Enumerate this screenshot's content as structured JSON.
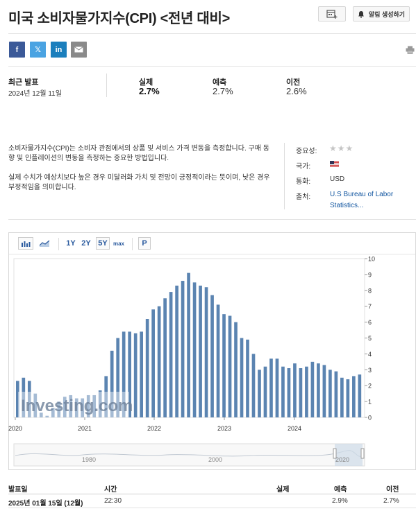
{
  "page": {
    "title": "미국 소비자물가지수(CPI) <전년 대비>",
    "alert_button": "알림 생성하기"
  },
  "share": {
    "facebook": "f",
    "twitter": "𝕏",
    "linkedin": "in"
  },
  "stats": {
    "latest_label": "최근 발표",
    "latest_date": "2024년 12월 11일",
    "actual_label": "실제",
    "actual_value": "2.7%",
    "forecast_label": "예측",
    "forecast_value": "2.7%",
    "previous_label": "이전",
    "previous_value": "2.6%"
  },
  "description": {
    "p1": "소비자물가지수(CPI)는 소비자 관점에서의 상품 및 서비스 가격 변동을 측정합니다. 구매 동향 및 인플레이션의 변동을 측정하는 중요한 방법입니다.",
    "p2": "실제 수치가 예상치보다 높은 경우 미달러화 가치 및 전망이 긍정적이라는 뜻이며, 낮은 경우 부정적임을 의미합니다."
  },
  "meta": {
    "importance_label": "중요성:",
    "importance_stars": 3,
    "country_label": "국가:",
    "currency_label": "통화:",
    "currency_value": "USD",
    "source_label": "출처:",
    "source_value_line1": "U.S Bureau of Labor",
    "source_value_line2": "Statistics..."
  },
  "chart_toolbar": {
    "range_1y": "1Y",
    "range_2y": "2Y",
    "range_5y": "5Y",
    "range_max": "max",
    "p_button": "P"
  },
  "chart_data": {
    "type": "bar",
    "x_tick_labels": [
      "2020",
      "2021",
      "2022",
      "2023",
      "2024"
    ],
    "y_tick_labels": [
      "0",
      "1",
      "2",
      "3",
      "4",
      "5",
      "6",
      "7",
      "8",
      "9",
      "10"
    ],
    "ylim": [
      0,
      10
    ],
    "values": [
      2.3,
      2.5,
      2.3,
      1.5,
      0.3,
      0.1,
      0.6,
      1.0,
      1.3,
      1.4,
      1.2,
      1.2,
      1.4,
      1.4,
      1.7,
      2.6,
      4.2,
      5.0,
      5.4,
      5.4,
      5.3,
      5.4,
      6.2,
      6.8,
      7.0,
      7.5,
      7.9,
      8.3,
      8.6,
      9.1,
      8.5,
      8.3,
      8.2,
      7.7,
      7.1,
      6.5,
      6.4,
      6.0,
      5.0,
      4.9,
      4.0,
      3.0,
      3.2,
      3.7,
      3.7,
      3.2,
      3.1,
      3.4,
      3.1,
      3.2,
      3.5,
      3.4,
      3.3,
      3.0,
      2.9,
      2.5,
      2.4,
      2.6,
      2.7
    ],
    "watermark": "Investing.com",
    "bar_color": "#5b84b1",
    "navigator_labels": [
      "1980",
      "2000",
      "2020"
    ]
  },
  "table": {
    "headers": {
      "date": "발표일",
      "time": "시간",
      "actual": "실제",
      "forecast": "예측",
      "previous": "이전"
    },
    "rows": [
      {
        "date": "2025년 01월 15일 (12월)",
        "time": "22:30",
        "actual": "",
        "forecast": "2.9%",
        "previous": "2.7%"
      }
    ]
  }
}
